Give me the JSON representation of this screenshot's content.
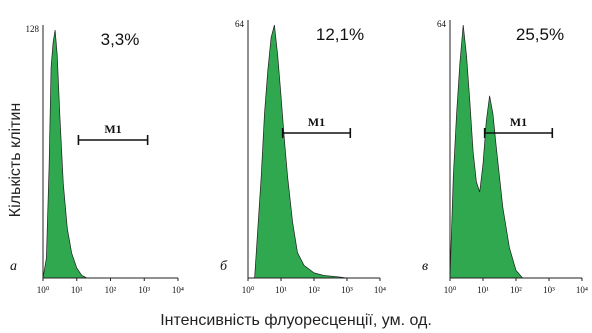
{
  "figure": {
    "ylabel": "Кількість клітин",
    "xlabel": "Інтенсивність флуоресценції, ум. од.",
    "colors": {
      "fill": "#2fa84f",
      "stroke": "#1f1f1f"
    }
  },
  "chart_data": [
    {
      "type": "area",
      "panel_label": "а",
      "percent": "3,3%",
      "ymax_label": "128",
      "x_log_range": [
        0,
        4
      ],
      "x_ticks": [
        "10⁰",
        "10¹",
        "10²",
        "10³",
        "10⁴"
      ],
      "gate": {
        "label": "M1",
        "x_range": [
          1.05,
          3.1
        ]
      },
      "x": [
        0,
        0.1,
        0.18,
        0.24,
        0.3,
        0.36,
        0.42,
        0.5,
        0.6,
        0.72,
        0.85,
        1.0,
        1.15,
        1.3
      ],
      "y": [
        0,
        8,
        45,
        85,
        95,
        100,
        90,
        65,
        38,
        20,
        10,
        4,
        1,
        0
      ]
    },
    {
      "type": "area",
      "panel_label": "б",
      "percent": "12,1%",
      "ymax_label": "64",
      "x_log_range": [
        0,
        4
      ],
      "x_ticks": [
        "10⁰",
        "10¹",
        "10²",
        "10³",
        "10⁴"
      ],
      "gate": {
        "label": "M1",
        "x_range": [
          1.05,
          3.1
        ]
      },
      "x": [
        0.2,
        0.3,
        0.4,
        0.5,
        0.6,
        0.7,
        0.8,
        0.9,
        1.0,
        1.1,
        1.2,
        1.35,
        1.5,
        1.7,
        2.0,
        2.3,
        2.7,
        3.0
      ],
      "y": [
        0,
        20,
        40,
        65,
        82,
        95,
        100,
        88,
        72,
        55,
        40,
        22,
        10,
        5,
        2,
        1,
        0.5,
        0
      ]
    },
    {
      "type": "area",
      "panel_label": "в",
      "percent": "25,5%",
      "ymax_label": "64",
      "x_log_range": [
        0,
        4
      ],
      "x_ticks": [
        "10⁰",
        "10¹",
        "10²",
        "10³",
        "10⁴"
      ],
      "gate": {
        "label": "M1",
        "x_range": [
          1.05,
          3.1
        ]
      },
      "x": [
        0,
        0.1,
        0.2,
        0.3,
        0.4,
        0.5,
        0.6,
        0.7,
        0.8,
        0.9,
        1.0,
        1.1,
        1.2,
        1.3,
        1.4,
        1.5,
        1.6,
        1.8,
        2.0,
        2.2
      ],
      "y": [
        0,
        40,
        65,
        85,
        100,
        88,
        70,
        50,
        38,
        34,
        45,
        62,
        72,
        65,
        52,
        40,
        28,
        12,
        3,
        0
      ]
    }
  ]
}
